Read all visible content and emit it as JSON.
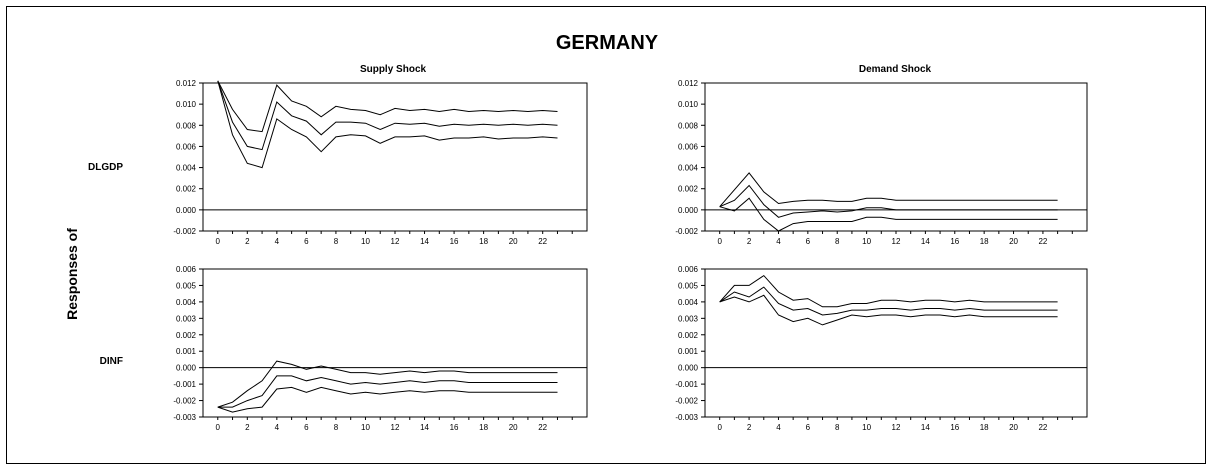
{
  "figure": {
    "title": "GERMANY",
    "ylabel": "Responses of",
    "row_labels": [
      "DLGDP",
      "DINF"
    ],
    "col_titles": [
      "Supply Shock",
      "Demand Shock"
    ]
  },
  "chart_data": [
    {
      "type": "line",
      "title": "Supply Shock",
      "ylabel": "DLGDP",
      "x": [
        0,
        1,
        2,
        3,
        4,
        5,
        6,
        7,
        8,
        9,
        10,
        11,
        12,
        13,
        14,
        15,
        16,
        17,
        18,
        19,
        20,
        21,
        22,
        23
      ],
      "xticks": [
        0,
        2,
        4,
        6,
        8,
        10,
        12,
        14,
        16,
        18,
        20,
        22
      ],
      "ylim": [
        -0.002,
        0.012
      ],
      "yticks": [
        "0.012",
        "0.010",
        "0.008",
        "0.006",
        "0.004",
        "0.002",
        "0.000",
        "-0.002"
      ],
      "zero_line": true,
      "grid": false,
      "series": [
        {
          "values": [
            0.0122,
            0.0095,
            0.0076,
            0.0074,
            0.0118,
            0.0103,
            0.0098,
            0.0088,
            0.0098,
            0.0095,
            0.0094,
            0.009,
            0.0096,
            0.0094,
            0.0095,
            0.0093,
            0.0095,
            0.0093,
            0.0094,
            0.0093,
            0.0094,
            0.0093,
            0.0094,
            0.0093
          ]
        },
        {
          "values": [
            0.0122,
            0.0083,
            0.006,
            0.0057,
            0.0102,
            0.0089,
            0.0084,
            0.0071,
            0.0083,
            0.0083,
            0.0082,
            0.0076,
            0.0082,
            0.0081,
            0.0082,
            0.0079,
            0.0081,
            0.008,
            0.0081,
            0.008,
            0.0081,
            0.008,
            0.0081,
            0.008
          ]
        },
        {
          "values": [
            0.0122,
            0.0071,
            0.0044,
            0.004,
            0.0086,
            0.0076,
            0.0069,
            0.0055,
            0.0069,
            0.0071,
            0.007,
            0.0063,
            0.0069,
            0.0069,
            0.007,
            0.0066,
            0.0068,
            0.0068,
            0.0069,
            0.0067,
            0.0068,
            0.0068,
            0.0069,
            0.0068
          ]
        }
      ]
    },
    {
      "type": "line",
      "title": "Demand Shock",
      "ylabel": "DLGDP",
      "x": [
        0,
        1,
        2,
        3,
        4,
        5,
        6,
        7,
        8,
        9,
        10,
        11,
        12,
        13,
        14,
        15,
        16,
        17,
        18,
        19,
        20,
        21,
        22,
        23
      ],
      "xticks": [
        0,
        2,
        4,
        6,
        8,
        10,
        12,
        14,
        16,
        18,
        20,
        22
      ],
      "ylim": [
        -0.002,
        0.012
      ],
      "yticks": [
        "0.012",
        "0.010",
        "0.008",
        "0.006",
        "0.004",
        "0.002",
        "0.000",
        "-0.002"
      ],
      "zero_line": true,
      "grid": false,
      "series": [
        {
          "values": [
            0.0003,
            0.0019,
            0.0035,
            0.0017,
            0.0006,
            0.0008,
            0.0009,
            0.0009,
            0.0008,
            0.0008,
            0.0011,
            0.0011,
            0.0009,
            0.0009,
            0.0009,
            0.0009,
            0.0009,
            0.0009,
            0.0009,
            0.0009,
            0.0009,
            0.0009,
            0.0009,
            0.0009
          ]
        },
        {
          "values": [
            0.0003,
            0.0009,
            0.0023,
            0.0005,
            -0.0007,
            -0.0003,
            -0.0002,
            -0.0001,
            -0.0002,
            -0.0001,
            0.0002,
            0.0002,
            0.0,
            0.0,
            0.0,
            0.0,
            0.0,
            0.0,
            0.0,
            0.0,
            0.0,
            0.0,
            0.0,
            0.0
          ]
        },
        {
          "values": [
            0.0003,
            -0.0001,
            0.0011,
            -0.0009,
            -0.002,
            -0.0013,
            -0.0011,
            -0.0011,
            -0.0011,
            -0.0011,
            -0.0007,
            -0.0007,
            -0.0009,
            -0.0009,
            -0.0009,
            -0.0009,
            -0.0009,
            -0.0009,
            -0.0009,
            -0.0009,
            -0.0009,
            -0.0009,
            -0.0009,
            -0.0009
          ]
        }
      ]
    },
    {
      "type": "line",
      "title": "Supply Shock",
      "ylabel": "DINF",
      "x": [
        0,
        1,
        2,
        3,
        4,
        5,
        6,
        7,
        8,
        9,
        10,
        11,
        12,
        13,
        14,
        15,
        16,
        17,
        18,
        19,
        20,
        21,
        22,
        23
      ],
      "xticks": [
        0,
        2,
        4,
        6,
        8,
        10,
        12,
        14,
        16,
        18,
        20,
        22
      ],
      "ylim": [
        -0.003,
        0.006
      ],
      "yticks": [
        "0.006",
        "0.005",
        "0.004",
        "0.003",
        "0.002",
        "0.001",
        "0.000",
        "-0.001",
        "-0.002",
        "-0.003"
      ],
      "zero_line": true,
      "grid": false,
      "series": [
        {
          "values": [
            -0.0024,
            -0.0021,
            -0.0014,
            -0.0008,
            0.0004,
            0.0002,
            -0.0001,
            0.0001,
            -0.0001,
            -0.0003,
            -0.0003,
            -0.0004,
            -0.0003,
            -0.0002,
            -0.0003,
            -0.0002,
            -0.0002,
            -0.0003,
            -0.0003,
            -0.0003,
            -0.0003,
            -0.0003,
            -0.0003,
            -0.0003
          ]
        },
        {
          "values": [
            -0.0024,
            -0.0024,
            -0.002,
            -0.0017,
            -0.0005,
            -0.0005,
            -0.0008,
            -0.0006,
            -0.0008,
            -0.001,
            -0.0009,
            -0.001,
            -0.0009,
            -0.0008,
            -0.0009,
            -0.0008,
            -0.0008,
            -0.0009,
            -0.0009,
            -0.0009,
            -0.0009,
            -0.0009,
            -0.0009,
            -0.0009
          ]
        },
        {
          "values": [
            -0.0024,
            -0.0027,
            -0.0025,
            -0.0024,
            -0.0013,
            -0.0012,
            -0.0015,
            -0.0012,
            -0.0014,
            -0.0016,
            -0.0015,
            -0.0016,
            -0.0015,
            -0.0014,
            -0.0015,
            -0.0014,
            -0.0014,
            -0.0015,
            -0.0015,
            -0.0015,
            -0.0015,
            -0.0015,
            -0.0015,
            -0.0015
          ]
        }
      ]
    },
    {
      "type": "line",
      "title": "Demand Shock",
      "ylabel": "DINF",
      "x": [
        0,
        1,
        2,
        3,
        4,
        5,
        6,
        7,
        8,
        9,
        10,
        11,
        12,
        13,
        14,
        15,
        16,
        17,
        18,
        19,
        20,
        21,
        22,
        23
      ],
      "xticks": [
        0,
        2,
        4,
        6,
        8,
        10,
        12,
        14,
        16,
        18,
        20,
        22
      ],
      "ylim": [
        -0.003,
        0.006
      ],
      "yticks": [
        "0.006",
        "0.005",
        "0.004",
        "0.003",
        "0.002",
        "0.001",
        "0.000",
        "-0.001",
        "-0.002",
        "-0.003"
      ],
      "zero_line": true,
      "grid": false,
      "series": [
        {
          "values": [
            0.004,
            0.005,
            0.005,
            0.0056,
            0.0046,
            0.0041,
            0.0042,
            0.0037,
            0.0037,
            0.0039,
            0.0039,
            0.0041,
            0.0041,
            0.004,
            0.0041,
            0.0041,
            0.004,
            0.0041,
            0.004,
            0.004,
            0.004,
            0.004,
            0.004,
            0.004
          ]
        },
        {
          "values": [
            0.004,
            0.0046,
            0.0043,
            0.0049,
            0.0039,
            0.0035,
            0.0036,
            0.0032,
            0.0033,
            0.0035,
            0.0035,
            0.0036,
            0.0036,
            0.0035,
            0.0036,
            0.0036,
            0.0035,
            0.0036,
            0.0035,
            0.0035,
            0.0035,
            0.0035,
            0.0035,
            0.0035
          ]
        },
        {
          "values": [
            0.004,
            0.0043,
            0.004,
            0.0044,
            0.0032,
            0.0028,
            0.003,
            0.0026,
            0.0029,
            0.0032,
            0.0031,
            0.0032,
            0.0032,
            0.0031,
            0.0032,
            0.0032,
            0.0031,
            0.0032,
            0.0031,
            0.0031,
            0.0031,
            0.0031,
            0.0031,
            0.0031
          ]
        }
      ]
    }
  ]
}
